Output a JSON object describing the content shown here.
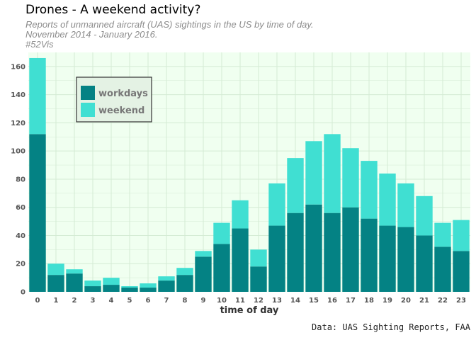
{
  "title": "Drones - A weekend activity?",
  "subtitle_lines": [
    "Reports of unmanned aircraft (UAS) sightings in the US by time of day.",
    "November 2014 - January 2016.",
    "#52Vis"
  ],
  "source": "Data: UAS Sighting Reports, FAA",
  "colors": {
    "workdays": "#048284",
    "weekend": "#40dfd2",
    "panel": "#f0fff0",
    "grid": "#d4ebd4"
  },
  "chart_data": {
    "type": "bar",
    "stacked": true,
    "categories": [
      "0",
      "1",
      "2",
      "3",
      "4",
      "5",
      "6",
      "7",
      "8",
      "9",
      "10",
      "11",
      "12",
      "13",
      "14",
      "15",
      "16",
      "17",
      "18",
      "19",
      "20",
      "21",
      "22",
      "23"
    ],
    "series": [
      {
        "name": "workdays",
        "values": [
          112,
          12,
          13,
          4,
          5,
          3,
          3,
          8,
          12,
          25,
          34,
          45,
          18,
          47,
          56,
          62,
          56,
          60,
          52,
          47,
          46,
          40,
          32,
          29
        ]
      },
      {
        "name": "weekend",
        "values": [
          54,
          8,
          3,
          4,
          5,
          1,
          3,
          3,
          5,
          4,
          15,
          20,
          12,
          30,
          39,
          45,
          56,
          42,
          41,
          37,
          31,
          28,
          17,
          22
        ]
      }
    ],
    "xlabel": "time of day",
    "ylabel": "",
    "ylim": [
      0,
      170
    ],
    "yticks": [
      0,
      20,
      40,
      60,
      80,
      100,
      120,
      140,
      160
    ],
    "grid": true,
    "legend_position": "top-left"
  }
}
